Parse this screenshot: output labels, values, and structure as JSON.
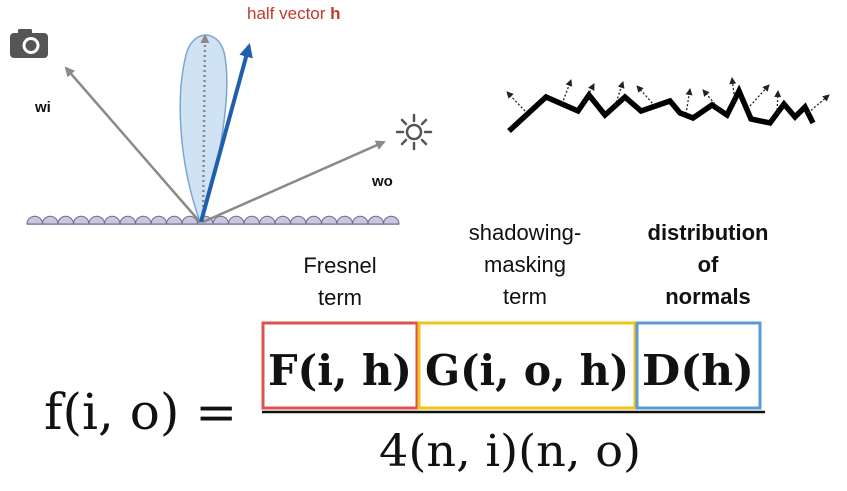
{
  "diagram": {
    "half_vector_label": "half vector",
    "half_vector_symbol": "h",
    "wi_label": "wi",
    "wo_label": "wo",
    "camera_icon": "camera-icon",
    "light_icon": "sun-icon"
  },
  "terms": {
    "fresnel": [
      "Fresnel",
      "term"
    ],
    "shadowing": [
      "shadowing-",
      "masking",
      "term"
    ],
    "distribution": [
      "distribution",
      "of",
      "normals"
    ]
  },
  "equation": {
    "lhs": "f(i, o) =",
    "fresnel_box": "F(i, h)",
    "shadowing_box": "G(i, o, h)",
    "distribution_box": "D(h)",
    "denominator": "4(n, i)(n, o)"
  },
  "colors": {
    "half_vector_label": "#c0392b",
    "half_vector_arrow": "#1f5fae",
    "direction_arrows": "#8a8a8a",
    "lobe_fill": "#cfe3f5",
    "lobe_stroke": "#7aa6cf",
    "surface_bumps": "#cbc5e3",
    "fresnel_box": "#d9534f",
    "shadowing_box": "#f0c419",
    "distribution_box": "#5b9bd5"
  }
}
